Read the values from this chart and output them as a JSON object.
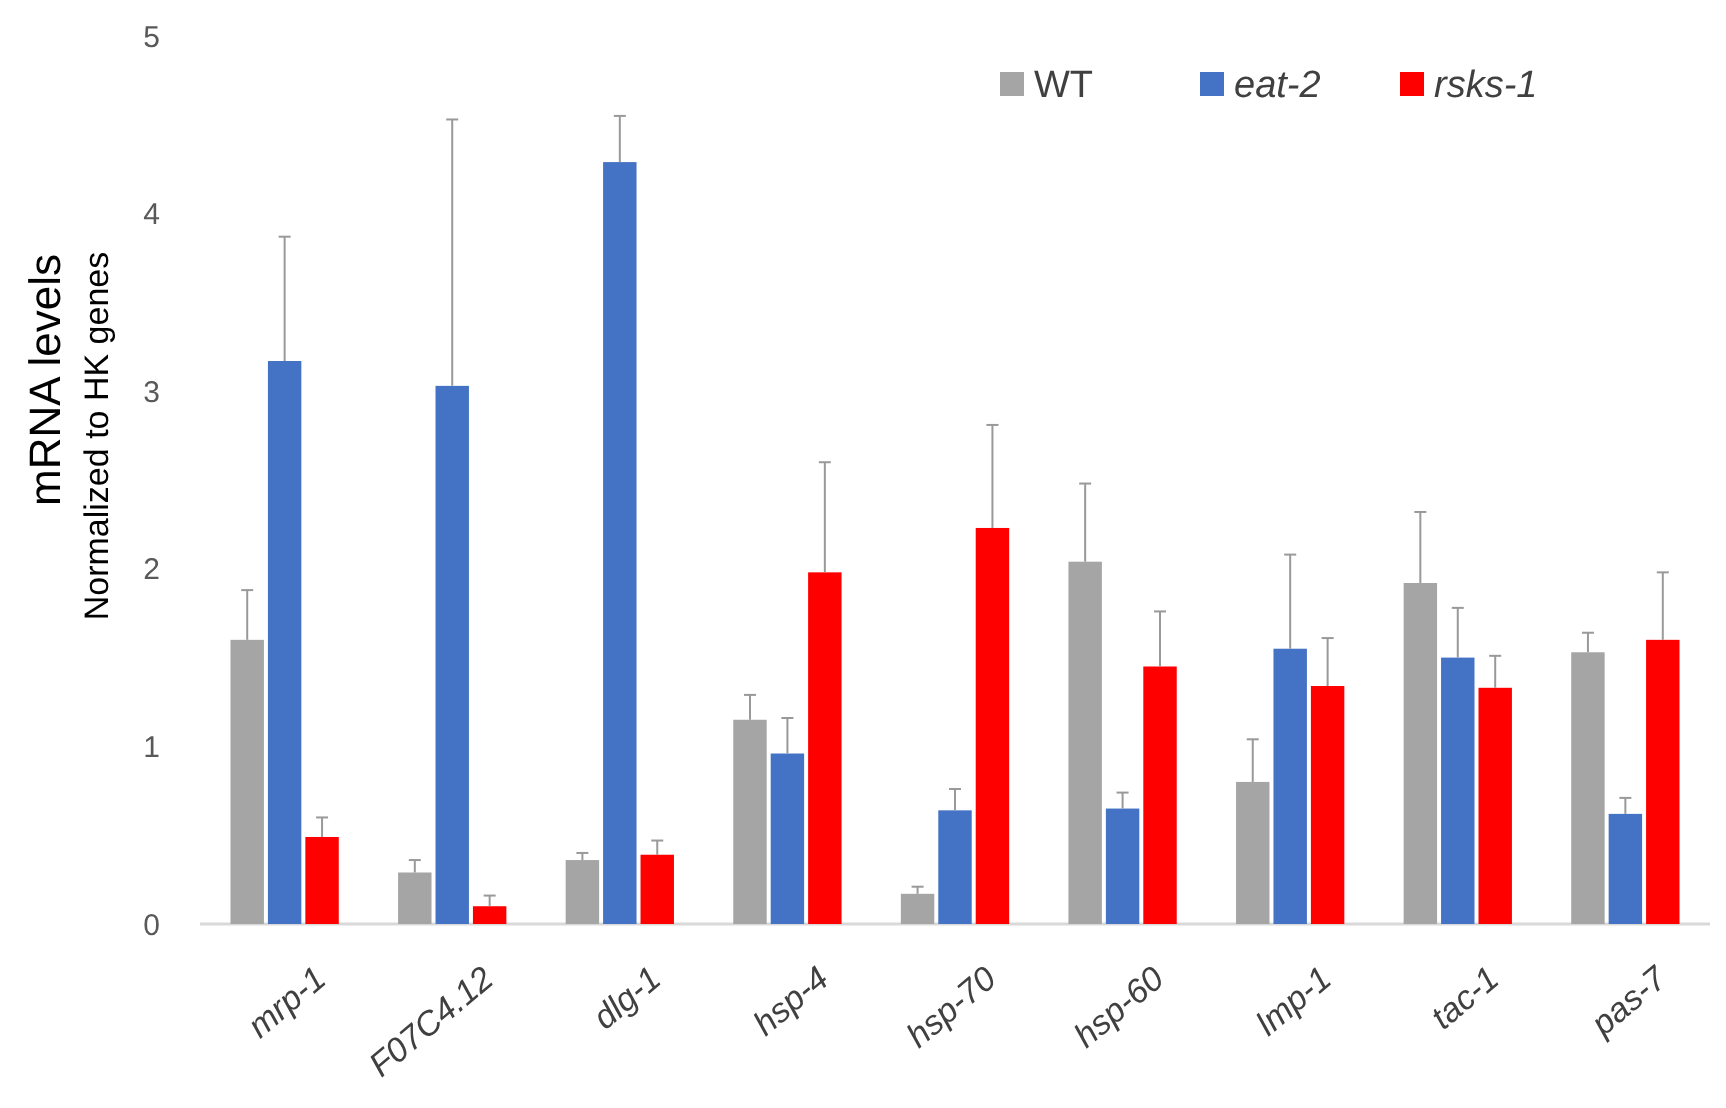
{
  "chart_data": {
    "type": "bar",
    "ylabel": "mRNA levels\nNormalized to HK genes",
    "categories": [
      "mrp-1",
      "F07C4.12",
      "dlg-1",
      "hsp-4",
      "hsp-70",
      "hsp-60",
      "lmp-1",
      "tac-1",
      "pas-7"
    ],
    "series": [
      {
        "name": "WT",
        "color": "#a5a5a5",
        "values": [
          1.6,
          0.29,
          0.36,
          1.15,
          0.17,
          2.04,
          0.8,
          1.92,
          1.53
        ],
        "errors": [
          [
            1.6,
            1.88
          ],
          [
            0.29,
            0.36
          ],
          [
            0.36,
            0.4
          ],
          [
            1.15,
            1.29
          ],
          [
            0.17,
            0.21
          ],
          [
            2.04,
            2.48
          ],
          [
            0.8,
            1.04
          ],
          [
            1.92,
            2.32
          ],
          [
            1.53,
            1.64
          ]
        ]
      },
      {
        "name": "eat-2",
        "color": "#4472c4",
        "values": [
          3.17,
          3.03,
          4.29,
          0.96,
          0.64,
          0.65,
          1.55,
          1.5,
          0.62
        ],
        "errors": [
          [
            3.17,
            3.87
          ],
          [
            3.03,
            4.53
          ],
          [
            4.29,
            4.55
          ],
          [
            0.96,
            1.16
          ],
          [
            0.64,
            0.76
          ],
          [
            0.65,
            0.74
          ],
          [
            1.55,
            2.08
          ],
          [
            1.5,
            1.78
          ],
          [
            0.62,
            0.71
          ]
        ]
      },
      {
        "name": "rsks-1",
        "color": "#ff0000",
        "values": [
          0.49,
          0.1,
          0.39,
          1.98,
          2.23,
          1.45,
          1.34,
          1.33,
          1.6
        ],
        "errors": [
          [
            0.49,
            0.6
          ],
          [
            0.1,
            0.16
          ],
          [
            0.39,
            0.47
          ],
          [
            1.98,
            2.6
          ],
          [
            2.23,
            2.81
          ],
          [
            1.45,
            1.76
          ],
          [
            1.34,
            1.61
          ],
          [
            1.33,
            1.51
          ],
          [
            1.6,
            1.98
          ]
        ]
      }
    ],
    "ylim": [
      0,
      5
    ],
    "yticks": [
      0,
      1,
      2,
      3,
      4,
      5
    ],
    "grid": false,
    "legend": "top right"
  }
}
